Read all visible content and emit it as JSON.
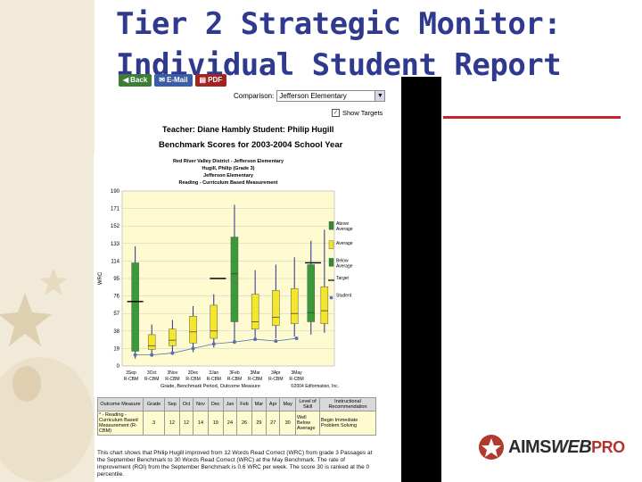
{
  "slide": {
    "title_line1": "Tier 2 Strategic Monitor:",
    "title_line2": "Individual Student Report"
  },
  "toolbar": {
    "back_label": "Back",
    "email_label": "E-Mail",
    "pdf_label": "PDF"
  },
  "comparison": {
    "label": "Comparison:",
    "selected": "Jefferson Elementary"
  },
  "show_targets": {
    "label": "Show Targets",
    "checked": true
  },
  "report": {
    "teacher_line": "Teacher: Diane Hambly  Student: Philip Hugill",
    "benchmark_title": "Benchmark Scores for 2003-2004 School Year"
  },
  "chart_data": {
    "type": "box",
    "header_lines": [
      "Red River Valley District - Jefferson Elementary",
      "Hugill, Philip (Grade 3)",
      "Jefferson Elementary",
      "Reading - Curriculum Based Measurement"
    ],
    "ylabel": "WRC",
    "xlabel": "Grade, Benchmark Period, Outcome Measure",
    "ylim": [
      0,
      190
    ],
    "yticks": [
      0,
      19,
      38,
      57,
      76,
      95,
      114,
      133,
      152,
      171,
      190
    ],
    "categories": [
      "3Sep R-CBM",
      "3Oct R-CBM",
      "3Nov R-CBM",
      "3Dec R-CBM",
      "3Jan R-CBM",
      "3Feb R-CBM",
      "3Mar R-CBM",
      "3Apr R-CBM",
      "3May R-CBM"
    ],
    "boxes": [
      {
        "min": 8,
        "q1": 16,
        "median": 70,
        "q3": 112,
        "max": 130,
        "color": "#3a9a3a"
      },
      {
        "min": 10,
        "q1": 18,
        "median": 22,
        "q3": 34,
        "max": 45,
        "color": "#f4e62a"
      },
      {
        "min": 12,
        "q1": 22,
        "median": 28,
        "q3": 40,
        "max": 50,
        "color": "#f4e62a"
      },
      {
        "min": 15,
        "q1": 25,
        "median": 37,
        "q3": 54,
        "max": 65,
        "color": "#f4e62a"
      },
      {
        "min": 20,
        "q1": 30,
        "median": 38,
        "q3": 66,
        "max": 78,
        "color": "#f4e62a"
      },
      {
        "min": 24,
        "q1": 48,
        "median": 100,
        "q3": 140,
        "max": 175,
        "color": "#3a9a3a"
      },
      {
        "min": 28,
        "q1": 40,
        "median": 48,
        "q3": 78,
        "max": 104,
        "color": "#f4e62a"
      },
      {
        "min": 30,
        "q1": 44,
        "median": 53,
        "q3": 82,
        "max": 110,
        "color": "#f4e62a"
      },
      {
        "min": 32,
        "q1": 46,
        "median": 57,
        "q3": 84,
        "max": 118,
        "color": "#f4e62a"
      },
      {
        "min": 34,
        "q1": 48,
        "median": 58,
        "q3": 110,
        "max": 136,
        "color": "#3a9a3a"
      },
      {
        "min": 36,
        "q1": 46,
        "median": 60,
        "q3": 86,
        "max": 148,
        "color": "#f4e62a"
      }
    ],
    "box_positions": [
      0.2,
      1.0,
      2.0,
      3.0,
      4.0,
      5.0,
      6.0,
      7.0,
      7.9,
      8.7,
      9.35
    ],
    "targets": [
      {
        "pos": 0.2,
        "value": 70
      },
      {
        "pos": 4.2,
        "value": 95
      },
      {
        "pos": 8.8,
        "value": 112
      }
    ],
    "student_points": [
      {
        "pos": 0.2,
        "value": 12
      },
      {
        "pos": 1.0,
        "value": 12
      },
      {
        "pos": 2.0,
        "value": 14
      },
      {
        "pos": 3.0,
        "value": 19
      },
      {
        "pos": 4.0,
        "value": 24
      },
      {
        "pos": 5.0,
        "value": 26
      },
      {
        "pos": 6.0,
        "value": 29
      },
      {
        "pos": 7.0,
        "value": 27
      },
      {
        "pos": 8.0,
        "value": 30
      }
    ],
    "legend": [
      {
        "label": "Above Average",
        "color": "#2e8b2e"
      },
      {
        "label": "Average",
        "color": "#f4e62a"
      },
      {
        "label": "Below Average",
        "color": "#2e8b2e"
      },
      {
        "label": "Target",
        "color": "#000000"
      },
      {
        "label": "Student",
        "color": "#5a6fb2"
      }
    ],
    "footer_right": "©2004 Edformation, Inc.",
    "x_label_count": 9
  },
  "data_table": {
    "headers": [
      "Outcome Measure",
      "Grade",
      "Sep",
      "Oct",
      "Nov",
      "Dec",
      "Jan",
      "Feb",
      "Mar",
      "Apr",
      "May",
      "Level of Skill",
      "Instructional Recommendation"
    ],
    "row": [
      "* - Reading - Curriculum Based Measurement (R-CBM)",
      "3",
      "12",
      "12",
      "14",
      "19",
      "24",
      "26",
      "29",
      "27",
      "30",
      "Well Below Average",
      "Begin Immediate Problem Solving"
    ]
  },
  "summary_text": "This chart shows that Philip Hugill improved from 12 Words Read Correct (WRC) from grade 3 Passages at the September Benchmark to 30 Words Read Correct (WRC) at the May Benchmark. The rate of improvement (ROI) from the September Benchmark is 0.6 WRC per week. The score 30 is ranked at the 0 percentile.",
  "brand": {
    "name_bold": "AIMS",
    "name_italic": "WEB",
    "suffix": "PRO"
  },
  "colors": {
    "title": "#2f3a8e",
    "accent_red": "#cc2229",
    "chart_bg": "#fffbd0"
  }
}
